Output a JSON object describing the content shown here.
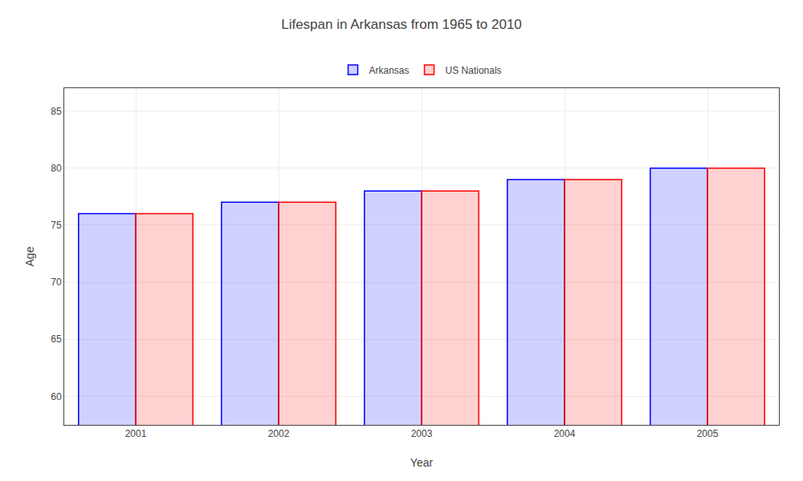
{
  "chart_data": {
    "type": "bar",
    "title": "Lifespan in Arkansas from 1965 to 2010",
    "x_label": "Year",
    "y_label": "Age",
    "categories": [
      "2001",
      "2002",
      "2003",
      "2004",
      "2005"
    ],
    "series": [
      {
        "name": "Arkansas",
        "color": "#0000ff",
        "values": [
          76.0,
          77.0,
          78.0,
          79.0,
          80.0
        ]
      },
      {
        "name": "US Nationals",
        "color": "#ff0000",
        "values": [
          76.0,
          77.0,
          78.0,
          79.0,
          80.0
        ]
      }
    ],
    "ylim": [
      57.5,
      87
    ],
    "yticks": [
      60,
      65,
      70,
      75,
      80,
      85
    ],
    "grid": true,
    "legend": "upper center"
  }
}
